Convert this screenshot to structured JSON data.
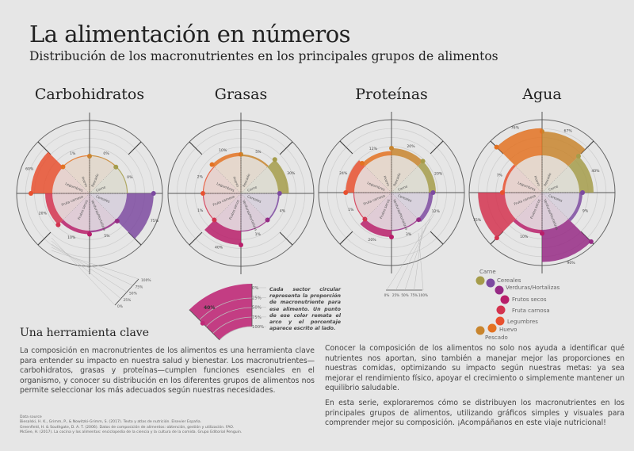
{
  "header": {
    "title": "La alimentación en números",
    "subtitle": "Distribución de los macronutrientes en los principales grupos de alimentos"
  },
  "colors": {
    "background": "#e6e6e6",
    "Pescado": "#c8852e",
    "Carne": "#a59c4a",
    "Cereales": "#7c4aa0",
    "Verduras/Hortalizas": "#962a85",
    "Frutos secos": "#b81e6a",
    "Fruta carnosa": "#d3334f",
    "Legumbres": "#e8502f",
    "Huevo": "#e37222"
  },
  "chart_data": [
    {
      "type": "polar-bar",
      "title": "Carbohidratos",
      "categories": [
        "Pescado",
        "Carne",
        "Cereales",
        "Verduras/Hortalizas",
        "Frutos secos",
        "Fruta carnosa",
        "Legumbres",
        "Huevo"
      ],
      "values": [
        0,
        0,
        75,
        5,
        10,
        20,
        60,
        1
      ],
      "unit": "%",
      "range": [
        0,
        100
      ]
    },
    {
      "type": "polar-bar",
      "title": "Grasas",
      "categories": [
        "Pescado",
        "Carne",
        "Cereales",
        "Verduras/Hortalizas",
        "Frutos secos",
        "Fruta carnosa",
        "Legumbres",
        "Huevo"
      ],
      "values": [
        5,
        30,
        4,
        1,
        40,
        1,
        2,
        10
      ],
      "unit": "%",
      "range": [
        0,
        100
      ]
    },
    {
      "type": "polar-bar",
      "title": "Proteínas",
      "categories": [
        "Pescado",
        "Carne",
        "Cereales",
        "Verduras/Hortalizas",
        "Frutos secos",
        "Fruta carnosa",
        "Legumbres",
        "Huevo"
      ],
      "values": [
        20,
        20,
        12,
        3,
        20,
        1,
        24,
        12
      ],
      "unit": "%",
      "range": [
        0,
        100
      ]
    },
    {
      "type": "polar-bar",
      "title": "Agua",
      "categories": [
        "Pescado",
        "Carne",
        "Cereales",
        "Verduras/Hortalizas",
        "Frutos secos",
        "Fruta carnosa",
        "Legumbres",
        "Huevo"
      ],
      "values": [
        67,
        40,
        9,
        90,
        10,
        75,
        7,
        76
      ],
      "unit": "%",
      "range": [
        0,
        100
      ]
    }
  ],
  "scale_ticks": [
    "0%",
    "25%",
    "50%",
    "75%",
    "100%"
  ],
  "key": {
    "example_value": "40%",
    "note": "Cada sector circular representa la proporción de macronutriente para ese alimento. Un punto de ese color remata el arco y el porcentaje aparece escrito al lado."
  },
  "legend": [
    "Carne",
    "Cereales",
    "Verduras/Hortalizas",
    "Frutos secos",
    "Fruta carnosa",
    "Legumbres",
    "Huevo",
    "Pescado"
  ],
  "section": {
    "heading": "Una herramienta clave",
    "p1": "La composición en macronutrientes de los alimentos es una herramienta clave para entender su impacto en nuestra salud y bienestar. Los macronutrientes—carbohidratos, grasas y proteínas—cumplen funciones esenciales en el organismo, y conocer su distribución en los diferentes grupos de alimentos nos permite seleccionar los más adecuados según nuestras necesidades.",
    "p2": "Conocer la composición de los alimentos no solo nos ayuda a identificar qué nutrientes nos aportan, sino también a manejar mejor las proporciones en nuestras comidas, optimizando su impacto según nuestras metas: ya sea mejorar el rendimiento físico, apoyar el crecimiento o simplemente mantener un equilibrio saludable.",
    "p3": "En esta serie, exploraremos cómo se distribuyen los macronutrientes en los principales grupos de alimentos, utilizando gráficos simples y visuales para comprender mejor su composición. ¡Acompáñanos en este viaje nutricional!"
  },
  "sources": {
    "label": "Data source",
    "items": [
      "Biesalski, H. K., Grimm, P., & Nowitzki-Grimm, S. (2017). Texto y atlas de nutrición. Elsevier España.",
      "Greenfield, H. & Southgate, D. A. T. (2006). Datos de composición de alimentos: obtención, gestión y utilización. FAO.",
      "McGee, H. (2017). La cocina y los alimentos: enciclopedia de la ciencia y la cultura de la comida. Grupo Editorial Penguin."
    ]
  }
}
